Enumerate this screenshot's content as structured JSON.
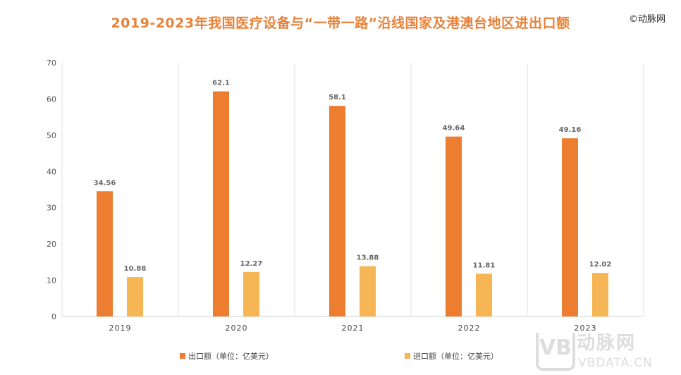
{
  "chart_data": {
    "type": "bar",
    "title": "2019-2023年我国医疗设备与“一带一路”沿线国家及港澳台地区进出口额",
    "categories": [
      "2019",
      "2020",
      "2021",
      "2022",
      "2023"
    ],
    "series": [
      {
        "name": "出口额（单位：亿美元）",
        "color": "#ed7d31",
        "values": [
          34.56,
          62.1,
          58.1,
          49.64,
          49.16
        ],
        "labels": [
          "34.56",
          "62.1",
          "58.1",
          "49.64",
          "49.16"
        ]
      },
      {
        "name": "进口额（单位：亿美元）",
        "color": "#f7b656",
        "values": [
          10.88,
          12.27,
          13.88,
          11.81,
          12.02
        ],
        "labels": [
          "10.88",
          "12.27",
          "13.88",
          "11.81",
          "12.02"
        ]
      }
    ],
    "ylim": [
      0,
      70
    ],
    "yticks": [
      "0",
      "10",
      "20",
      "30",
      "40",
      "50",
      "60",
      "70"
    ],
    "xlabel": "",
    "ylabel": "",
    "grid": "vertical category separators",
    "legend": "bottom"
  },
  "brand": "©动脉网",
  "watermark": {
    "logo": "VB",
    "name": "动脉网",
    "url": "VBDATA.CN"
  }
}
